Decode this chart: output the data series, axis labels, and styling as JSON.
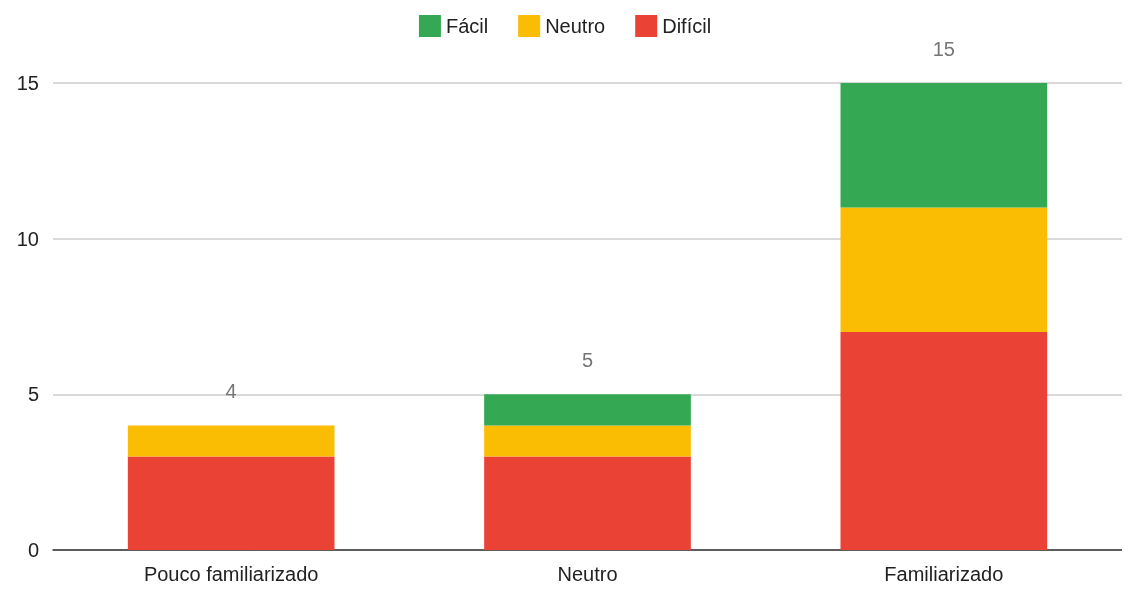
{
  "chart_data": {
    "type": "bar",
    "stacked": true,
    "categories": [
      "Pouco familiarizado",
      "Neutro",
      "Familiarizado"
    ],
    "series": [
      {
        "name": "Difícil",
        "color": "#ea4335",
        "values": [
          3,
          3,
          7
        ]
      },
      {
        "name": "Neutro",
        "color": "#fbbc04",
        "values": [
          1,
          1,
          4
        ]
      },
      {
        "name": "Fácil",
        "color": "#34a853",
        "values": [
          0,
          1,
          4
        ]
      }
    ],
    "totals": [
      "4",
      "5",
      "15"
    ],
    "ylim": [
      0,
      15
    ],
    "yticks": [
      0,
      5,
      10,
      15
    ],
    "grid": "y",
    "legend": "top"
  }
}
